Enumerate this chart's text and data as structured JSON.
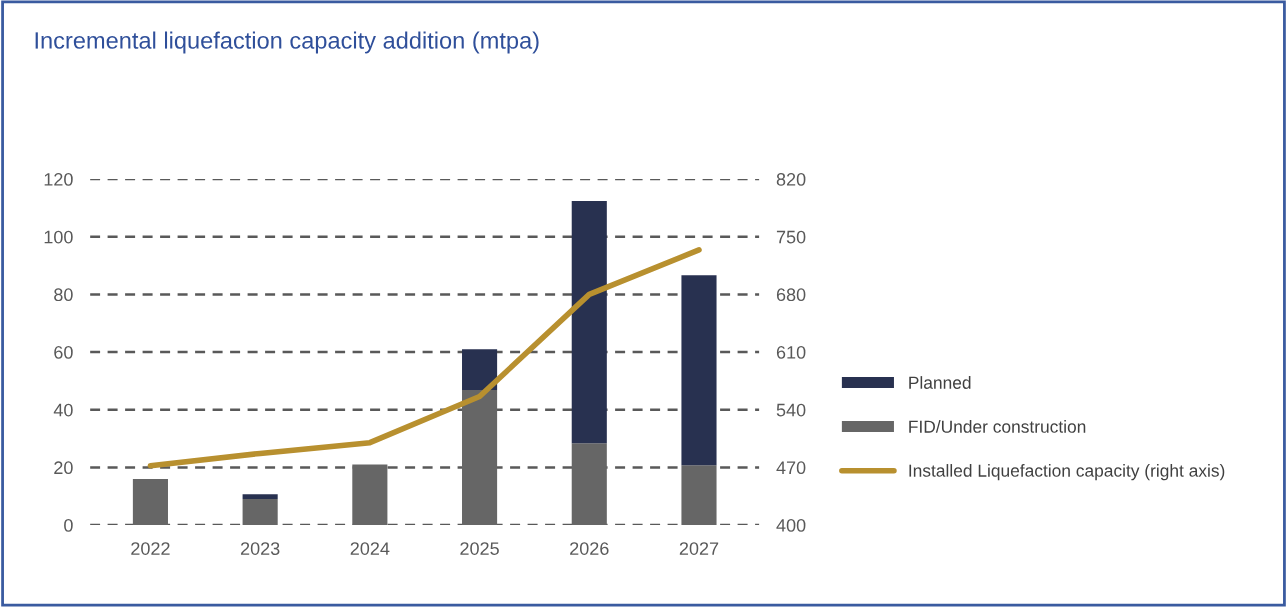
{
  "chart_data": {
    "type": "bar",
    "title": "Incremental liquefaction capacity addition (mtpa)",
    "categories": [
      "2022",
      "2023",
      "2024",
      "2025",
      "2026",
      "2027"
    ],
    "stacked": true,
    "series": [
      {
        "name": "FID/Under construction",
        "color": "#666666",
        "values": [
          16,
          9,
          21,
          46.8,
          28.4,
          20.7
        ]
      },
      {
        "name": "Planned",
        "color": "#283150",
        "values": [
          0,
          1.7,
          0,
          14.2,
          84,
          65.9
        ]
      },
      {
        "name": "Installed Liquefaction capacity (right axis)",
        "color": "#b8902f",
        "type": "line",
        "axis": "y2",
        "values": [
          472,
          487,
          500,
          556,
          680,
          734
        ]
      }
    ],
    "ylim": [
      0,
      120
    ],
    "yticks": [
      0,
      20,
      40,
      60,
      80,
      100,
      120
    ],
    "y2lim": [
      400,
      820
    ],
    "y2ticks": [
      400,
      470,
      540,
      610,
      680,
      750,
      820
    ],
    "grid": "y",
    "legend": "right",
    "line_style": "solid",
    "marker": "none"
  }
}
